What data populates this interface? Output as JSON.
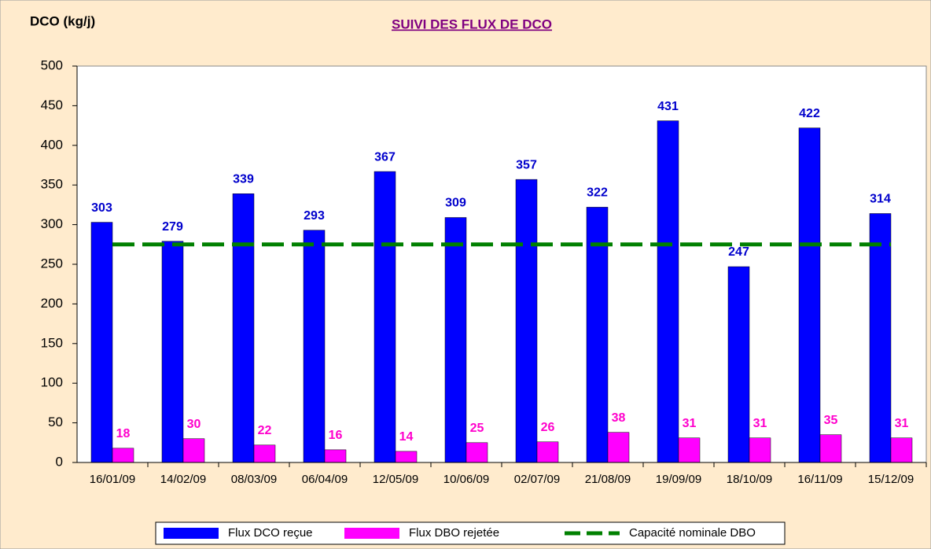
{
  "chart_data": {
    "type": "bar",
    "title": "SUIVI DES FLUX DE DCO",
    "y_label": "DCO (kg/j)",
    "categories": [
      "16/01/09",
      "14/02/09",
      "08/03/09",
      "06/04/09",
      "12/05/09",
      "10/06/09",
      "02/07/09",
      "21/08/09",
      "19/09/09",
      "18/10/09",
      "16/11/09",
      "15/12/09"
    ],
    "series": [
      {
        "name": "Flux DCO reçue",
        "color": "#0000ff",
        "values": [
          303,
          279,
          339,
          293,
          367,
          309,
          357,
          322,
          431,
          247,
          422,
          314
        ]
      },
      {
        "name": "Flux DBO rejetée",
        "color": "#ff00ff",
        "values": [
          18,
          30,
          22,
          16,
          14,
          25,
          26,
          38,
          31,
          31,
          35,
          31
        ]
      },
      {
        "name": "Capacité nominale DBO",
        "color": "#008000",
        "type": "line",
        "values": [
          275,
          275,
          275,
          275,
          275,
          275,
          275,
          275,
          275,
          275,
          275,
          275
        ]
      }
    ],
    "ylim": [
      0,
      500
    ],
    "yticks": [
      0,
      50,
      100,
      150,
      200,
      250,
      300,
      350,
      400,
      450,
      500
    ],
    "grid": false,
    "legend": "bottom"
  }
}
